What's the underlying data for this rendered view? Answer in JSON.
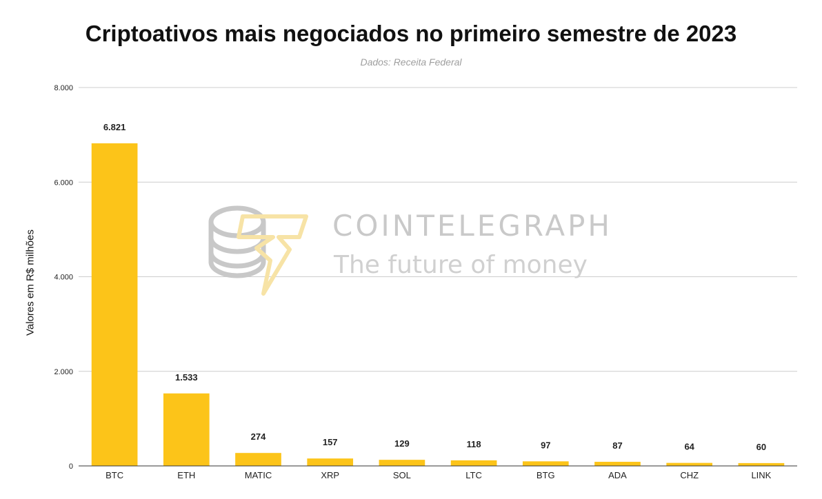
{
  "chart_data": {
    "type": "bar",
    "title": "Criptoativos mais negociados no primeiro semestre de 2023",
    "subtitle": "Dados: Receita Federal",
    "xlabel": "",
    "ylabel": "Valores em R$ milhões",
    "ylim": [
      0,
      8000
    ],
    "yticks": [
      0,
      2000,
      4000,
      6000,
      8000
    ],
    "ytick_labels": [
      "0",
      "2.000",
      "4.000",
      "6.000",
      "8.000"
    ],
    "grid": true,
    "categories": [
      "BTC",
      "ETH",
      "MATIC",
      "XRP",
      "SOL",
      "LTC",
      "BTG",
      "ADA",
      "CHZ",
      "LINK"
    ],
    "values": [
      6821,
      1533,
      274,
      157,
      129,
      118,
      97,
      87,
      64,
      60
    ],
    "value_labels": [
      "6.821",
      "1.533",
      "274",
      "157",
      "129",
      "118",
      "97",
      "87",
      "64",
      "60"
    ],
    "bar_color": "#fcc419"
  },
  "watermark": {
    "brand": "COINTELEGRAPH",
    "tagline": "The future of money"
  }
}
